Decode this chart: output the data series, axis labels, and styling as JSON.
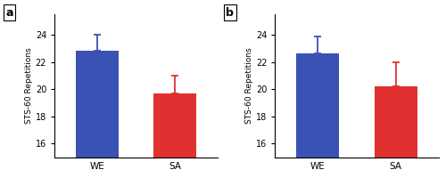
{
  "panel_a": {
    "label": "a",
    "categories": [
      "WE",
      "SA"
    ],
    "values": [
      22.8,
      19.7
    ],
    "errors_up": [
      1.2,
      1.3
    ],
    "errors_down": [
      0.0,
      0.0
    ],
    "colors": [
      "#3A52B4",
      "#E03030"
    ]
  },
  "panel_b": {
    "label": "b",
    "categories": [
      "WE",
      "SA"
    ],
    "values": [
      22.6,
      20.2
    ],
    "errors_up": [
      1.3,
      1.8
    ],
    "errors_down": [
      0.0,
      0.0
    ],
    "colors": [
      "#3A52B4",
      "#E03030"
    ]
  },
  "ylabel": "STS-60 Repetitions",
  "ylim": [
    15.0,
    25.5
  ],
  "yticks": [
    16,
    18,
    20,
    22,
    24
  ],
  "bar_width": 0.55,
  "background_color": "#FFFFFF",
  "capsize": 3,
  "elinewidth": 1.3,
  "capthick": 1.3,
  "xlim": [
    -0.55,
    1.55
  ]
}
